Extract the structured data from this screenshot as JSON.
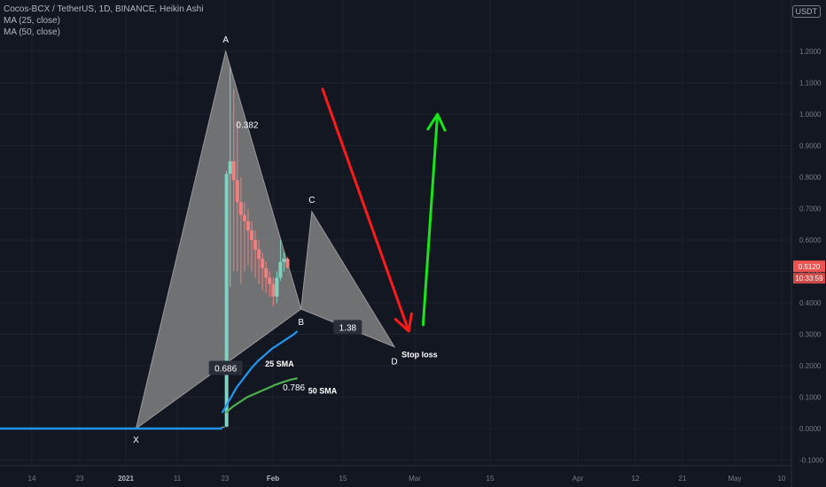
{
  "legend": {
    "symbol_line": "Cocos-BCX / TetherUS, 1D, BINANCE, Heikin Ashi",
    "ma25": "MA (25, close)",
    "ma50": "MA (50, close)"
  },
  "currency_badge": "USDT",
  "price_tag": {
    "price": "0.5120",
    "countdown": "10:33:59",
    "color": "#ef5350"
  },
  "colors": {
    "background": "#131722",
    "grid": "#1e222d",
    "up_candle": "#7dd3c0",
    "down_candle": "#f08080",
    "pattern_fill": "#8a8a8a",
    "ma25": "#2196f3",
    "ma50": "#4caf50",
    "red_arrow": "#ff1a1a",
    "green_arrow": "#19e619",
    "axis_text": "#787b86"
  },
  "chart_data": {
    "type": "candlestick",
    "title": "Cocos-BCX / TetherUS, 1D, BINANCE, Heikin Ashi",
    "y_axis": {
      "ticks": [
        "1.2000",
        "1.1000",
        "1.0000",
        "0.9000",
        "0.8000",
        "0.7000",
        "0.6000",
        "0.5000",
        "0.4000",
        "0.3000",
        "0.2000",
        "0.1000",
        "0.0000",
        "-0.1000"
      ],
      "range": [
        -0.1,
        1.25
      ]
    },
    "x_axis": {
      "ticks": [
        "14",
        "23",
        "2021",
        "11",
        "23",
        "Feb",
        "15",
        "Mar",
        "15",
        "Apr",
        "12",
        "21",
        "May",
        "10"
      ],
      "bold": [
        "2021",
        "Feb"
      ]
    },
    "pattern_points": [
      {
        "label": "X",
        "day": 38,
        "price": 0.0
      },
      {
        "label": "A",
        "day": 63,
        "price": 1.2
      },
      {
        "label": "B",
        "day": 84,
        "price": 0.38
      },
      {
        "label": "C",
        "day": 87,
        "price": 0.69
      },
      {
        "label": "D",
        "day": 110,
        "price": 0.26
      }
    ],
    "ratios": [
      {
        "text": "0.382",
        "day": 69,
        "price": 0.965
      },
      {
        "text": "0.686",
        "day": 63,
        "price": 0.19
      },
      {
        "text": "0.786",
        "day": 82,
        "price": 0.13
      },
      {
        "text": "1.38",
        "day": 97,
        "price": 0.32
      }
    ],
    "annotations": [
      {
        "text": "25 SMA",
        "day": 78,
        "price": 0.205
      },
      {
        "text": "50 SMA",
        "day": 90,
        "price": 0.12
      },
      {
        "text": "Stop loss",
        "day": 117,
        "price": 0.235
      }
    ],
    "candles": [
      {
        "o": 0.005,
        "h": 0.006,
        "l": 0.004,
        "c": 0.006
      },
      {
        "o": 0.006,
        "h": 0.82,
        "l": 0.005,
        "c": 0.81
      },
      {
        "o": 0.81,
        "h": 1.15,
        "l": 0.45,
        "c": 0.85
      },
      {
        "o": 0.85,
        "h": 1.08,
        "l": 0.5,
        "c": 0.79
      },
      {
        "o": 0.79,
        "h": 0.98,
        "l": 0.5,
        "c": 0.72
      },
      {
        "o": 0.72,
        "h": 0.8,
        "l": 0.46,
        "c": 0.68
      },
      {
        "o": 0.68,
        "h": 0.72,
        "l": 0.5,
        "c": 0.66
      },
      {
        "o": 0.66,
        "h": 0.7,
        "l": 0.52,
        "c": 0.63
      },
      {
        "o": 0.63,
        "h": 0.66,
        "l": 0.5,
        "c": 0.6
      },
      {
        "o": 0.6,
        "h": 0.63,
        "l": 0.48,
        "c": 0.57
      },
      {
        "o": 0.57,
        "h": 0.6,
        "l": 0.46,
        "c": 0.54
      },
      {
        "o": 0.54,
        "h": 0.56,
        "l": 0.44,
        "c": 0.51
      },
      {
        "o": 0.51,
        "h": 0.53,
        "l": 0.43,
        "c": 0.48
      },
      {
        "o": 0.48,
        "h": 0.5,
        "l": 0.42,
        "c": 0.46
      },
      {
        "o": 0.46,
        "h": 0.48,
        "l": 0.39,
        "c": 0.42
      },
      {
        "o": 0.42,
        "h": 0.5,
        "l": 0.4,
        "c": 0.48
      },
      {
        "o": 0.48,
        "h": 0.6,
        "l": 0.47,
        "c": 0.53
      },
      {
        "o": 0.53,
        "h": 0.56,
        "l": 0.5,
        "c": 0.54
      },
      {
        "o": 0.54,
        "h": 0.545,
        "l": 0.51,
        "c": 0.512
      }
    ],
    "candle_start_day": 62,
    "ma25": [
      [
        62,
        0.05
      ],
      [
        64,
        0.09
      ],
      [
        66,
        0.13
      ],
      [
        68,
        0.16
      ],
      [
        70,
        0.19
      ],
      [
        72,
        0.215
      ],
      [
        74,
        0.235
      ],
      [
        76,
        0.255
      ],
      [
        78,
        0.27
      ],
      [
        80,
        0.285
      ],
      [
        82,
        0.3
      ],
      [
        83,
        0.31
      ]
    ],
    "ma50": [
      [
        63,
        0.05
      ],
      [
        65,
        0.07
      ],
      [
        67,
        0.085
      ],
      [
        69,
        0.1
      ],
      [
        71,
        0.11
      ],
      [
        73,
        0.12
      ],
      [
        75,
        0.13
      ],
      [
        77,
        0.14
      ],
      [
        79,
        0.148
      ],
      [
        81,
        0.155
      ],
      [
        83,
        0.16
      ]
    ],
    "flat_line_price": 0.0,
    "red_arrow": {
      "from": {
        "day": 90,
        "price": 1.08
      },
      "to": {
        "day": 114,
        "price": 0.31
      }
    },
    "green_arrow": {
      "from": {
        "day": 118,
        "price": 0.33
      },
      "to": {
        "day": 122,
        "price": 1.0
      }
    }
  }
}
